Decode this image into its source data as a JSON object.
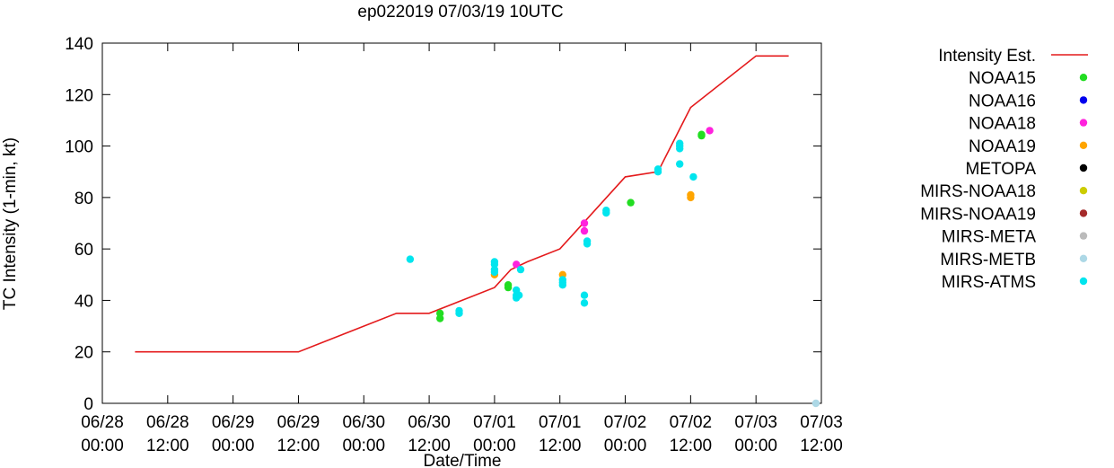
{
  "chart_data": {
    "type": "scatter",
    "title": "ep022019 07/03/19 10UTC",
    "xlabel": "Date/Time",
    "ylabel": "TC Intensity (1-min, kt)",
    "ylim": [
      0,
      140
    ],
    "yticks": [
      0,
      20,
      40,
      60,
      80,
      100,
      120,
      140
    ],
    "xlim_hours": [
      0,
      132
    ],
    "xticks": [
      {
        "hour": 0,
        "line1": "06/28",
        "line2": "00:00"
      },
      {
        "hour": 12,
        "line1": "06/28",
        "line2": "12:00"
      },
      {
        "hour": 24,
        "line1": "06/29",
        "line2": "00:00"
      },
      {
        "hour": 36,
        "line1": "06/29",
        "line2": "12:00"
      },
      {
        "hour": 48,
        "line1": "06/30",
        "line2": "00:00"
      },
      {
        "hour": 60,
        "line1": "06/30",
        "line2": "12:00"
      },
      {
        "hour": 72,
        "line1": "07/01",
        "line2": "00:00"
      },
      {
        "hour": 84,
        "line1": "07/01",
        "line2": "12:00"
      },
      {
        "hour": 96,
        "line1": "07/02",
        "line2": "00:00"
      },
      {
        "hour": 108,
        "line1": "07/02",
        "line2": "12:00"
      },
      {
        "hour": 120,
        "line1": "07/03",
        "line2": "00:00"
      },
      {
        "hour": 132,
        "line1": "07/03",
        "line2": "12:00"
      }
    ],
    "legend_position": "right",
    "intensity_line": {
      "name": "Intensity Est.",
      "color": "#e41a1c",
      "points": [
        [
          6,
          20
        ],
        [
          36,
          20
        ],
        [
          54,
          35
        ],
        [
          60,
          35
        ],
        [
          72,
          45
        ],
        [
          75,
          52
        ],
        [
          78,
          55
        ],
        [
          84,
          60
        ],
        [
          96,
          88
        ],
        [
          102,
          90
        ],
        [
          108,
          115
        ],
        [
          120,
          135
        ],
        [
          126,
          135
        ]
      ]
    },
    "series": [
      {
        "name": "NOAA15",
        "color": "#22dd22",
        "points": [
          [
            62,
            33
          ],
          [
            62,
            35
          ],
          [
            74.5,
            45
          ],
          [
            74.5,
            46
          ],
          [
            97,
            78
          ],
          [
            110,
            104
          ],
          [
            110,
            104.5
          ]
        ]
      },
      {
        "name": "NOAA16",
        "color": "#0000ee",
        "points": []
      },
      {
        "name": "NOAA18",
        "color": "#ff22dd",
        "points": [
          [
            76,
            54
          ],
          [
            88.5,
            67
          ],
          [
            88.5,
            70
          ],
          [
            111.5,
            106
          ]
        ]
      },
      {
        "name": "NOAA19",
        "color": "#ffa500",
        "points": [
          [
            72,
            50
          ],
          [
            84.5,
            50
          ],
          [
            108,
            80
          ],
          [
            108,
            81
          ]
        ]
      },
      {
        "name": "METOPA",
        "color": "#000000",
        "points": []
      },
      {
        "name": "MIRS-NOAA18",
        "color": "#cccc00",
        "points": []
      },
      {
        "name": "MIRS-NOAA19",
        "color": "#a52a2a",
        "points": []
      },
      {
        "name": "MIRS-META",
        "color": "#bbbbbb",
        "points": []
      },
      {
        "name": "MIRS-METB",
        "color": "#add8e6",
        "points": [
          [
            131,
            0
          ]
        ]
      },
      {
        "name": "MIRS-ATMS",
        "color": "#00e5ee",
        "points": [
          [
            56.5,
            56
          ],
          [
            65.5,
            35
          ],
          [
            65.5,
            36
          ],
          [
            72,
            51
          ],
          [
            72,
            52
          ],
          [
            72,
            54
          ],
          [
            72,
            55
          ],
          [
            76,
            41
          ],
          [
            76,
            42
          ],
          [
            76,
            44
          ],
          [
            76.5,
            42
          ],
          [
            76.8,
            52
          ],
          [
            84.5,
            46
          ],
          [
            84.5,
            47
          ],
          [
            84.5,
            48
          ],
          [
            88.5,
            39
          ],
          [
            88.5,
            42
          ],
          [
            89,
            62
          ],
          [
            89,
            63
          ],
          [
            92.5,
            74
          ],
          [
            92.5,
            75
          ],
          [
            102,
            90
          ],
          [
            102,
            91
          ],
          [
            106,
            93
          ],
          [
            106,
            99
          ],
          [
            106,
            100
          ],
          [
            106,
            101
          ],
          [
            108.5,
            88
          ]
        ]
      }
    ]
  }
}
